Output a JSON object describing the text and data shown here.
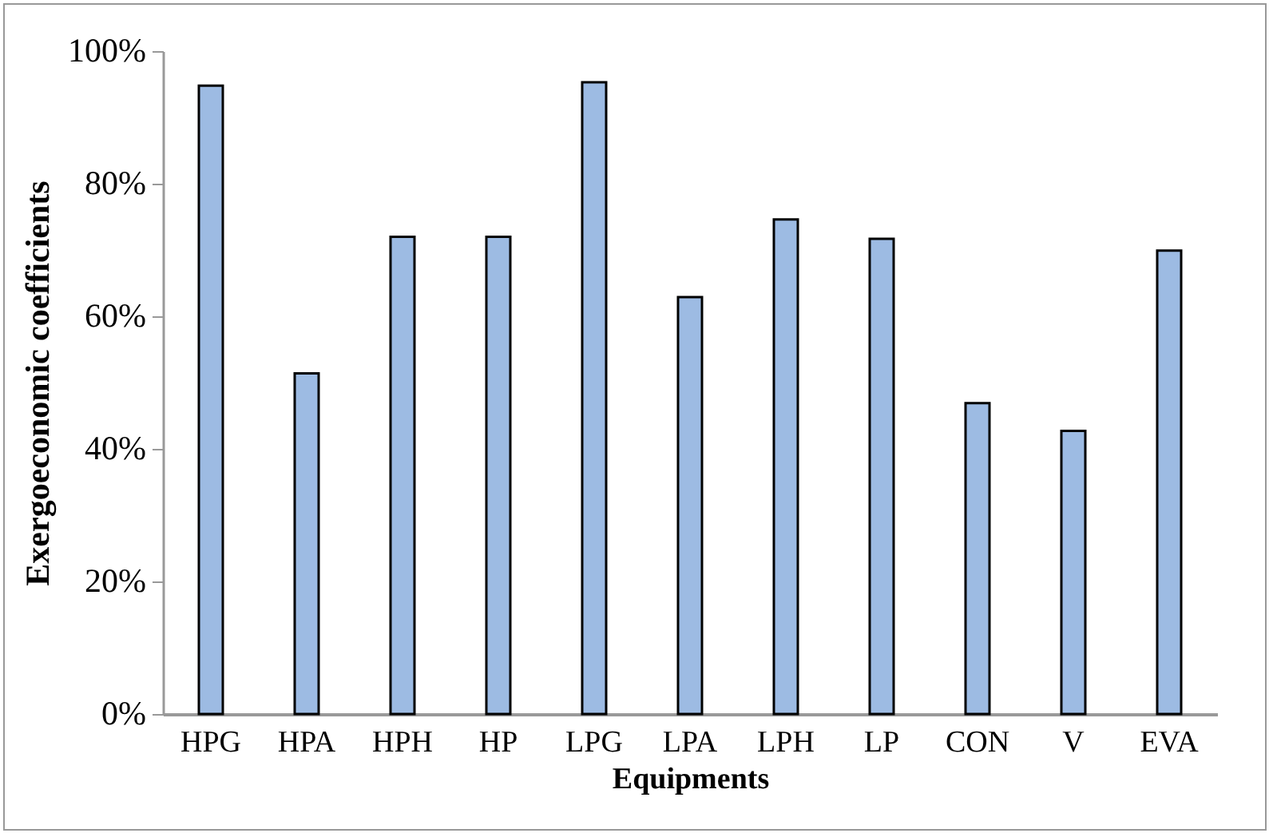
{
  "chart_data": {
    "type": "bar",
    "xlabel": "Equipments",
    "ylabel": "Exergoeconomic coefficients",
    "categories": [
      "HPG",
      "HPA",
      "HPH",
      "HP",
      "LPG",
      "LPA",
      "LPH",
      "LP",
      "CON",
      "V",
      "EVA"
    ],
    "values": [
      94.8,
      51.4,
      72.0,
      72.0,
      95.3,
      62.9,
      74.6,
      71.7,
      46.9,
      42.7,
      69.9
    ],
    "color": "#9dbbe3",
    "ylim": [
      0,
      100
    ],
    "yticks": [
      {
        "value": 0,
        "label": "0%"
      },
      {
        "value": 20,
        "label": "20%"
      },
      {
        "value": 40,
        "label": "40%"
      },
      {
        "value": 60,
        "label": "60%"
      },
      {
        "value": 80,
        "label": "80%"
      },
      {
        "value": 100,
        "label": "100%"
      }
    ],
    "grid": false
  }
}
